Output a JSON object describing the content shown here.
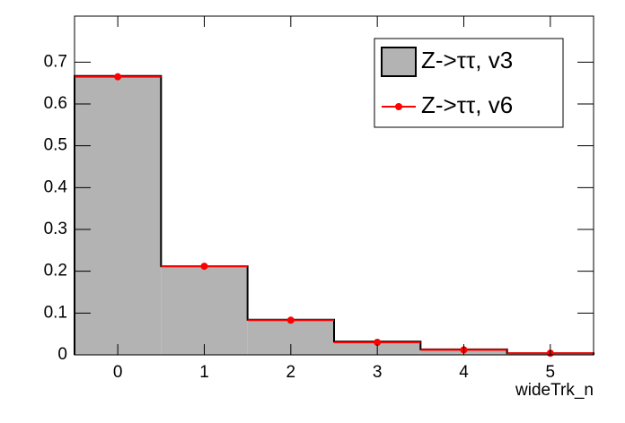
{
  "chart_data": {
    "type": "histogram",
    "x_label": "wideTrk_n",
    "bins": [
      -0.5,
      0.5,
      1.5,
      2.5,
      3.5,
      4.5,
      5.5
    ],
    "series": [
      {
        "name": "Z->ττ, v3",
        "color": "#000000",
        "fill": "#b3b3b3",
        "style": "filled",
        "values": [
          0.667,
          0.212,
          0.084,
          0.032,
          0.013,
          0.004
        ]
      },
      {
        "name": "Z->ττ, v6",
        "color": "#ff0000",
        "style": "markers",
        "values": [
          0.665,
          0.212,
          0.083,
          0.03,
          0.012,
          0.004
        ]
      }
    ],
    "xlim": [
      -0.5,
      5.5
    ],
    "xticks": [
      0,
      1,
      2,
      3,
      4,
      5
    ],
    "ylim": [
      0,
      0.81
    ],
    "yticks": [
      0,
      0.1,
      0.2,
      0.3,
      0.4,
      0.5,
      0.6,
      0.7
    ],
    "legend": "upper right"
  }
}
